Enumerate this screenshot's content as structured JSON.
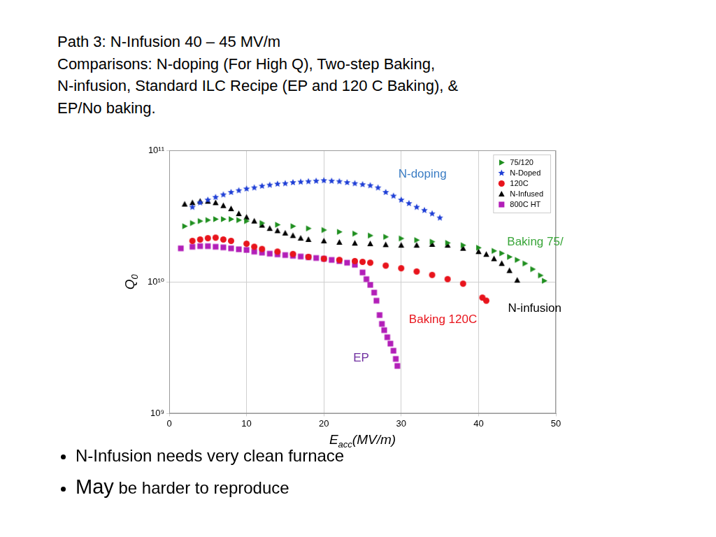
{
  "slide": {
    "title_lines": [
      "Path 3: N-Infusion 40 – 45 MV/m",
      "Comparisons: N-doping (For High Q), Two-step Baking,",
      "N-infusion, Standard ILC Recipe (EP and 120 C Baking), &",
      "EP/No baking."
    ],
    "bullets": [
      "N-Infusion needs very clean furnace",
      "May be harder to reproduce"
    ]
  },
  "chart_data": {
    "type": "scatter",
    "xlabel": [
      "E",
      "acc",
      "(MV/m)"
    ],
    "ylabel": [
      "Q",
      "0"
    ],
    "xlim": [
      0,
      50
    ],
    "xticks": [
      0,
      10,
      20,
      30,
      40,
      50
    ],
    "ylim": [
      1000000000.0,
      100000000000.0
    ],
    "yticks": [
      {
        "value": 1000000000.0,
        "label": "10⁹"
      },
      {
        "value": 10000000000.0,
        "label": "10¹⁰"
      },
      {
        "value": 100000000000.0,
        "label": "10¹¹"
      }
    ],
    "log": "y",
    "grid": true,
    "legend": "upper right",
    "annotations": [
      {
        "text": "N-doping",
        "color": "#3b7dc4"
      },
      {
        "text": "Baking 75/",
        "color": "#3aa63a"
      },
      {
        "text": "N-infusion",
        "color": "#000000"
      },
      {
        "text": "Baking 120C",
        "color": "#e8141c"
      },
      {
        "text": "EP",
        "color": "#7030a0"
      }
    ],
    "series": [
      {
        "name": "75/120",
        "color": "#1f8f1f",
        "marker": "triangle-right",
        "x": [
          2,
          3,
          4,
          5,
          6,
          7,
          8,
          9,
          10,
          12,
          14,
          16,
          18,
          20,
          22,
          24,
          26,
          28,
          30,
          32,
          34,
          36,
          38,
          40,
          42,
          43,
          44,
          45,
          46,
          47,
          48,
          48.5
        ],
        "values": [
          26500000000.0,
          28000000000.0,
          29000000000.0,
          29500000000.0,
          30000000000.0,
          30000000000.0,
          30000000000.0,
          29500000000.0,
          29000000000.0,
          28000000000.0,
          27200000000.0,
          26500000000.0,
          25500000000.0,
          24800000000.0,
          24000000000.0,
          23300000000.0,
          22500000000.0,
          22000000000.0,
          21400000000.0,
          20800000000.0,
          20200000000.0,
          19800000000.0,
          19000000000.0,
          18200000000.0,
          17200000000.0,
          16500000000.0,
          15500000000.0,
          14700000000.0,
          13800000000.0,
          12500000000.0,
          11200000000.0,
          10200000000.0
        ]
      },
      {
        "name": "N-Doped",
        "color": "#1f3fd6",
        "marker": "star",
        "x": [
          3,
          4,
          5,
          6,
          7,
          8,
          9,
          10,
          11,
          12,
          13,
          14,
          15,
          16,
          17,
          18,
          19,
          20,
          21,
          22,
          23,
          24,
          25,
          26,
          27,
          28,
          29,
          30,
          31,
          32,
          33,
          34,
          35
        ],
        "values": [
          37000000000.0,
          40000000000.0,
          42000000000.0,
          44000000000.0,
          46000000000.0,
          48000000000.0,
          49500000000.0,
          51000000000.0,
          52000000000.0,
          53500000000.0,
          54500000000.0,
          55500000000.0,
          56000000000.0,
          57000000000.0,
          57500000000.0,
          58000000000.0,
          58500000000.0,
          59000000000.0,
          58500000000.0,
          58000000000.0,
          57000000000.0,
          56000000000.0,
          55000000000.0,
          54000000000.0,
          52000000000.0,
          48000000000.0,
          45000000000.0,
          42000000000.0,
          39500000000.0,
          37000000000.0,
          35000000000.0,
          33000000000.0,
          30700000000.0
        ]
      },
      {
        "name": "120C",
        "color": "#e8141c",
        "marker": "circle",
        "x": [
          3,
          4,
          5,
          6,
          7,
          8,
          10,
          11,
          12,
          14,
          16,
          18,
          20,
          22,
          24,
          25,
          26,
          28,
          30,
          32,
          34,
          36,
          38,
          40.5,
          41
        ],
        "values": [
          20500000000.0,
          21000000000.0,
          21500000000.0,
          21700000000.0,
          21000000000.0,
          20500000000.0,
          19500000000.0,
          18500000000.0,
          17800000000.0,
          17000000000.0,
          16300000000.0,
          15500000000.0,
          15000000000.0,
          14700000000.0,
          14400000000.0,
          14200000000.0,
          14000000000.0,
          13300000000.0,
          12700000000.0,
          12000000000.0,
          11300000000.0,
          10500000000.0,
          9700000000.0,
          7600000000.0,
          7200000000.0
        ]
      },
      {
        "name": "N-Infused",
        "color": "#000000",
        "marker": "triangle",
        "x": [
          2,
          3,
          4,
          5,
          6,
          7,
          8,
          9,
          10,
          11,
          12,
          13,
          14,
          15,
          16,
          17,
          18,
          20,
          22,
          24,
          26,
          28,
          30,
          32,
          34,
          36,
          38,
          40,
          41,
          42,
          43,
          44,
          45
        ],
        "values": [
          39000000000.0,
          40000000000.0,
          41000000000.0,
          41000000000.0,
          40000000000.0,
          38000000000.0,
          36000000000.0,
          33000000000.0,
          31000000000.0,
          29000000000.0,
          27000000000.0,
          25500000000.0,
          24500000000.0,
          23500000000.0,
          22500000000.0,
          21500000000.0,
          21000000000.0,
          20500000000.0,
          20000000000.0,
          19700000000.0,
          19500000000.0,
          19200000000.0,
          19000000000.0,
          19000000000.0,
          19300000000.0,
          19000000000.0,
          18000000000.0,
          17000000000.0,
          16200000000.0,
          15000000000.0,
          13800000000.0,
          12200000000.0,
          10300000000.0
        ]
      },
      {
        "name": "800C HT",
        "color": "#b21fb8",
        "marker": "square",
        "x": [
          1.5,
          3,
          4,
          5,
          6,
          7,
          8,
          9,
          10,
          11,
          12,
          13,
          14,
          15,
          16,
          17,
          18,
          19,
          20,
          21,
          22,
          23,
          24,
          25,
          25.5,
          26,
          26.5,
          26.8,
          27.2,
          27.5,
          27.8,
          28.2,
          28.6,
          29,
          29.3,
          29.5
        ],
        "values": [
          18000000000.0,
          18500000000.0,
          18700000000.0,
          18700000000.0,
          18500000000.0,
          18300000000.0,
          18000000000.0,
          17700000000.0,
          17500000000.0,
          17000000000.0,
          16700000000.0,
          16400000000.0,
          16200000000.0,
          16000000000.0,
          15800000000.0,
          15600000000.0,
          15400000000.0,
          15200000000.0,
          15000000000.0,
          14700000000.0,
          14400000000.0,
          14000000000.0,
          13500000000.0,
          11800000000.0,
          10500000000.0,
          9500000000.0,
          8300000000.0,
          7200000000.0,
          5600000000.0,
          4800000000.0,
          4300000000.0,
          3800000000.0,
          3400000000.0,
          3000000000.0,
          2600000000.0,
          2300000000.0
        ]
      }
    ]
  }
}
